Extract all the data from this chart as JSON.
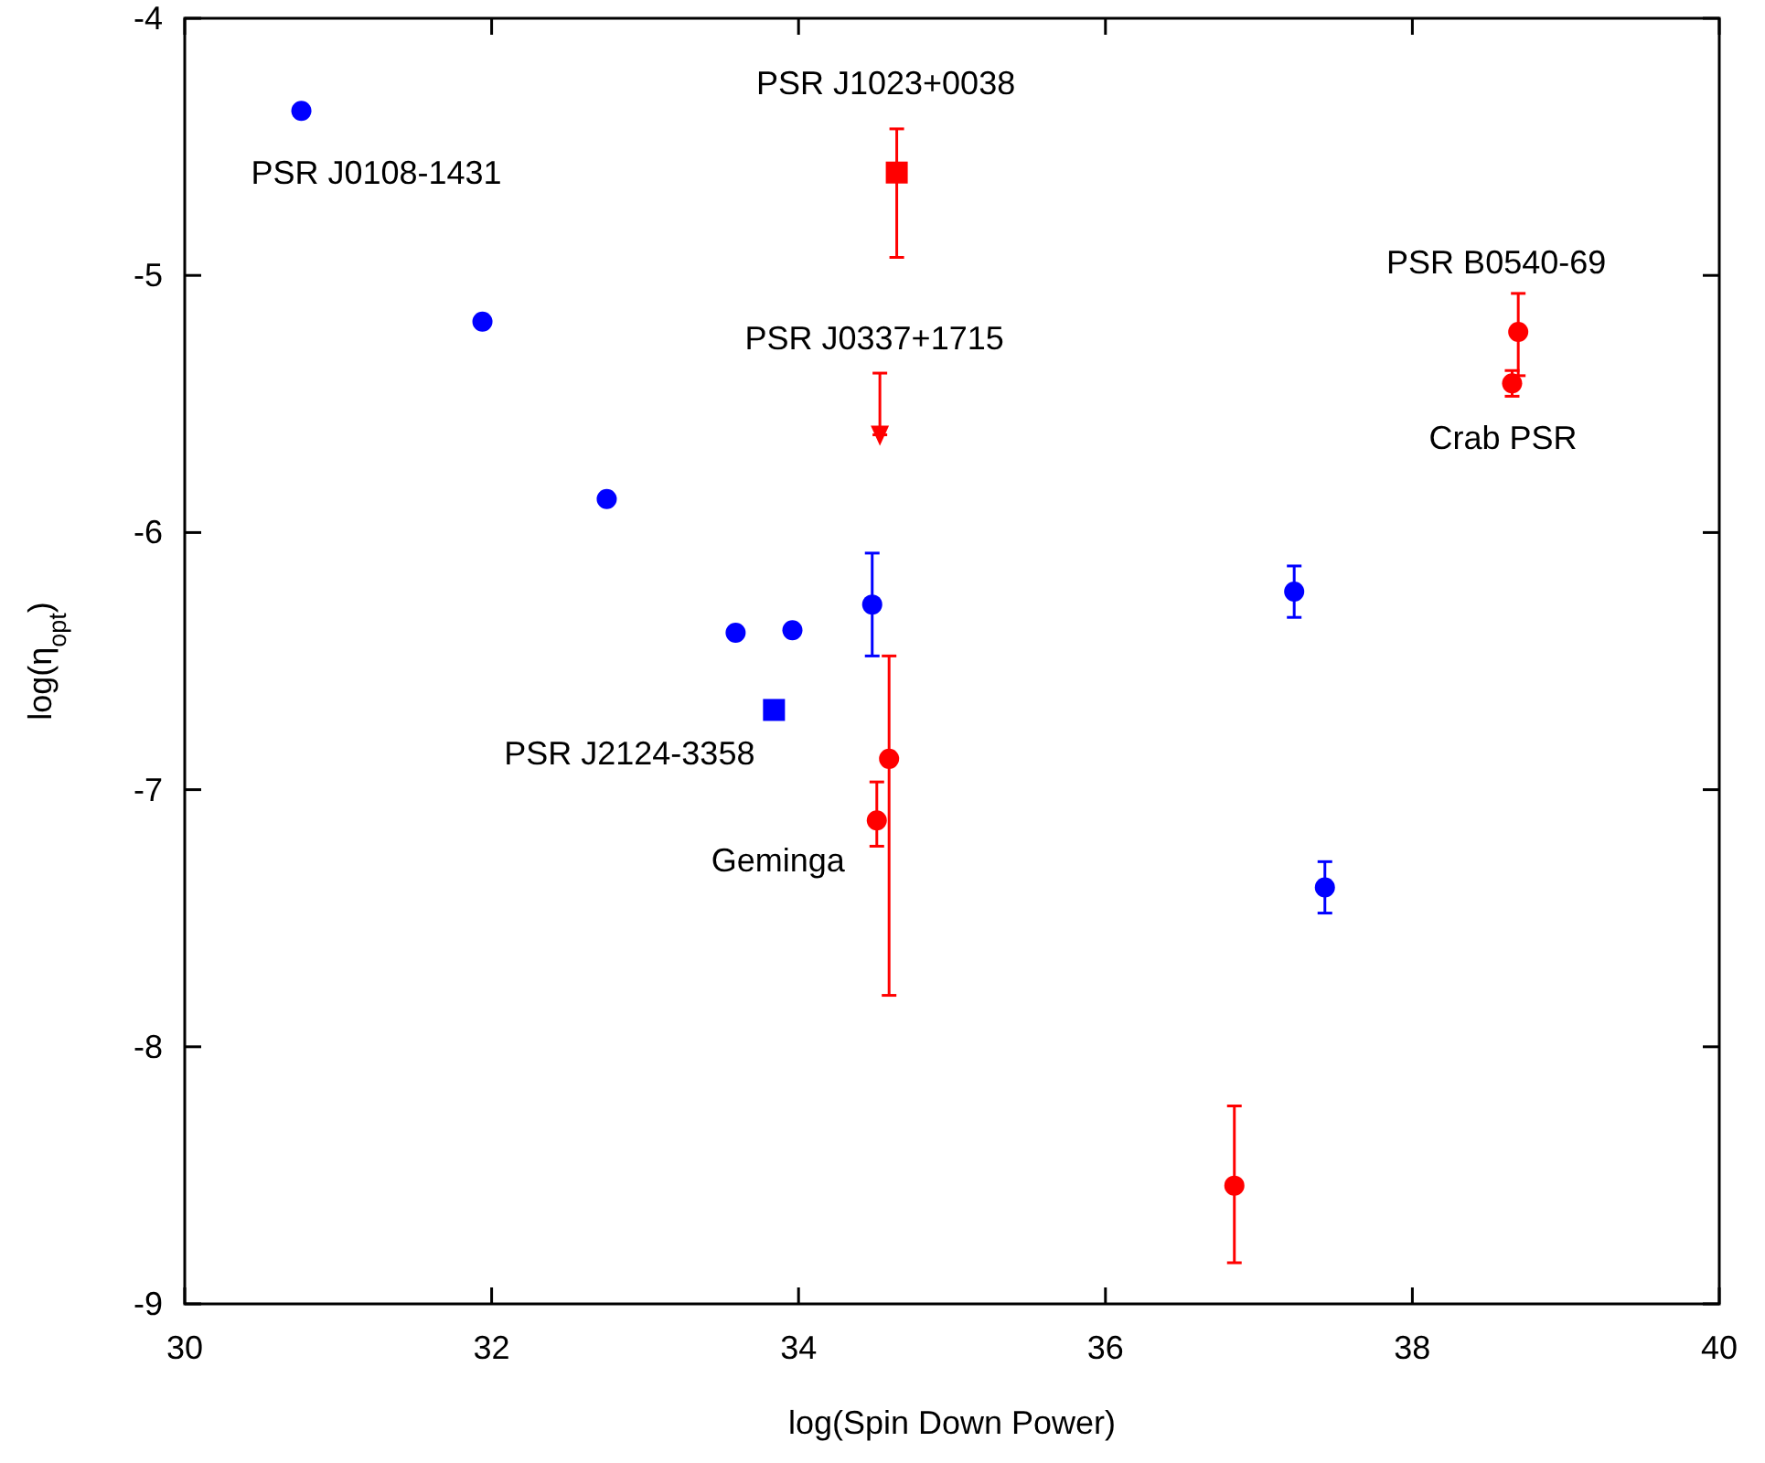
{
  "chart_data": {
    "type": "scatter",
    "xlabel": "log(Spin Down Power)",
    "ylabel": "log(η$_{opt}$)",
    "xlim": [
      30,
      40
    ],
    "ylim": [
      -9,
      -4
    ],
    "xticks": [
      30,
      32,
      34,
      36,
      38,
      40
    ],
    "yticks": [
      -9,
      -8,
      -7,
      -6,
      -5,
      -4
    ],
    "grid": false,
    "series": [
      {
        "type": "scatter",
        "marker": "circle",
        "color": "#0000ff",
        "x": [
          30.76,
          31.94,
          32.75,
          33.59,
          33.96,
          34.48,
          37.23,
          37.43
        ],
        "values": [
          -4.36,
          -5.18,
          -5.87,
          -6.39,
          -6.38,
          -6.28,
          -6.23,
          -7.38
        ],
        "errors": [
          null,
          null,
          null,
          null,
          null,
          [
            -6.48,
            -6.08
          ],
          [
            -6.33,
            -6.13
          ],
          [
            -7.48,
            -7.28
          ]
        ]
      },
      {
        "type": "scatter",
        "marker": "square",
        "color": "#0000ff",
        "x": [
          33.84
        ],
        "values": [
          -6.69
        ]
      },
      {
        "type": "scatter",
        "marker": "square",
        "color": "#ff0000",
        "x": [
          34.64
        ],
        "values": [
          -4.6
        ],
        "errors": [
          [
            -4.93,
            -4.43
          ]
        ]
      },
      {
        "marker": "triangle",
        "color": "#ff0000",
        "x": [
          34.53
        ],
        "values": [
          -5.62
        ],
        "errors": [
          [
            -5.62,
            -5.38
          ]
        ]
      },
      {
        "type": "scatter",
        "marker": "circle",
        "color": "#ff0000",
        "x": [
          34.59,
          34.51,
          36.84,
          38.69,
          38.65
        ],
        "values": [
          -6.88,
          -7.12,
          -8.54,
          -5.22,
          -5.42
        ],
        "errors": [
          [
            -7.8,
            -6.48
          ],
          [
            -7.22,
            -6.97
          ],
          [
            -8.84,
            -8.23
          ],
          [
            -5.39,
            -5.07
          ],
          [
            -5.47,
            -5.37
          ]
        ]
      }
    ],
    "annotations": [
      {
        "text": "PSR J0108-1431",
        "x": 30.76,
        "y": -4.36
      },
      {
        "text": "PSR J1023+0038",
        "x": 34.64,
        "y": -4.6
      },
      {
        "text": "PSR J0337+1715",
        "x": 34.53,
        "y": -5.38
      },
      {
        "text": "PSR B0540-69",
        "x": 38.69,
        "y": -5.22
      },
      {
        "text": "Crab PSR",
        "x": 38.65,
        "y": -5.42
      },
      {
        "text": "PSR J2124-3358",
        "x": 33.84,
        "y": -6.69
      },
      {
        "text": "Geminga",
        "x": 34.51,
        "y": -7.12
      }
    ]
  }
}
